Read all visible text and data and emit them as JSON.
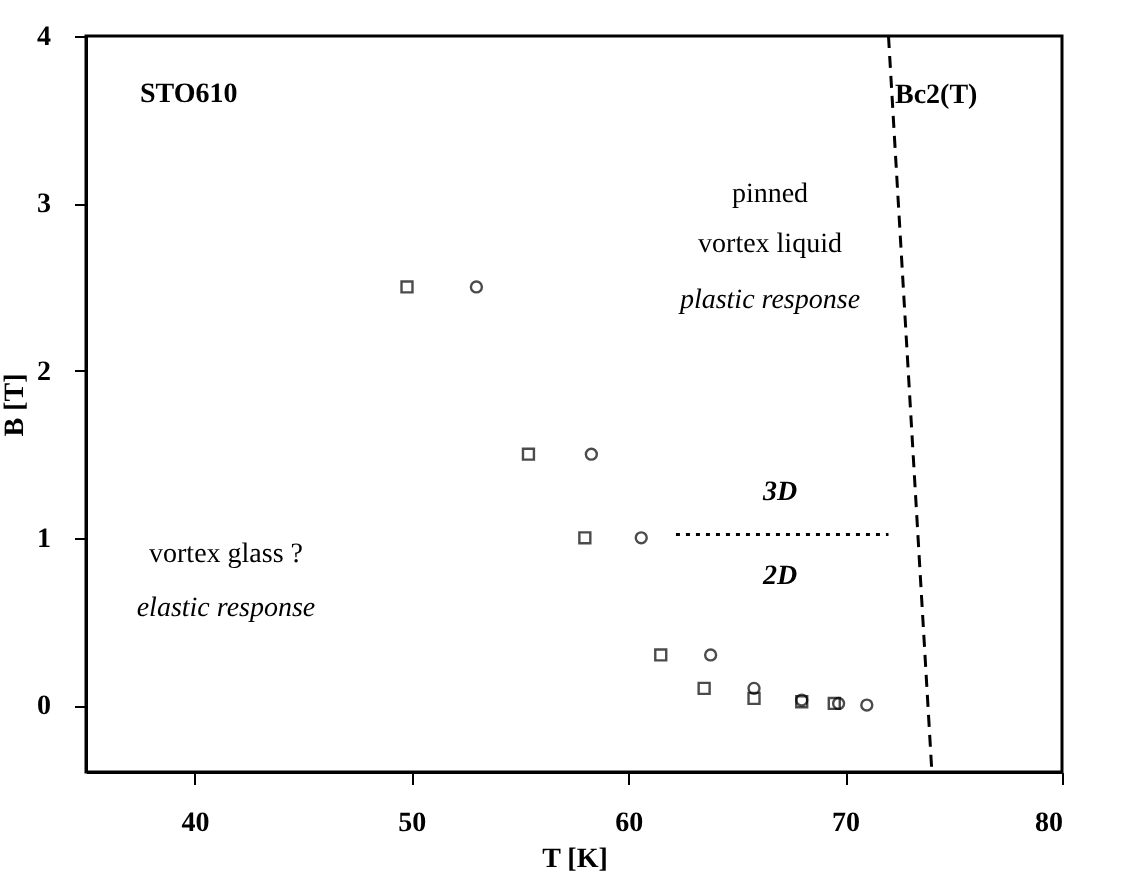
{
  "chart_data": {
    "type": "scatter",
    "xlabel": "T [K]",
    "ylabel": "B [T]",
    "xlim": [
      35,
      80
    ],
    "xticks": [
      40,
      50,
      60,
      70,
      80
    ],
    "ylim": [
      -0.4,
      4
    ],
    "yticks": [
      0,
      1,
      2,
      3,
      4
    ],
    "grid": false,
    "legend": false,
    "series": [
      {
        "marker": "square",
        "color": "#000000",
        "x": [
          49.8,
          55.4,
          58.0,
          61.5,
          63.5,
          65.8,
          68.0,
          69.5
        ],
        "values": [
          2.5,
          1.5,
          1.0,
          0.3,
          0.1,
          0.04,
          0.02,
          0.01
        ]
      },
      {
        "marker": "circle",
        "color": "#000000",
        "x": [
          53.0,
          58.3,
          60.6,
          63.8,
          65.8,
          68.0,
          69.7,
          71.0
        ],
        "values": [
          2.5,
          1.5,
          1.0,
          0.3,
          0.1,
          0.03,
          0.01,
          0.0
        ]
      },
      {
        "type": "line",
        "line_style": "dashed",
        "color": "#000000",
        "x": [
          72.0,
          74.0
        ],
        "values": [
          4.0,
          -0.4
        ]
      },
      {
        "type": "line",
        "line_style": "dotted",
        "color": "#000000",
        "x": [
          62.2,
          72.0
        ],
        "values": [
          1.02,
          1.02
        ]
      }
    ],
    "annotations": [
      "STO610",
      {
        "text": "Bc2(T)",
        "x": 72.3,
        "y": 3.65
      },
      "pinned",
      "vortex liquid",
      "plastic response",
      "3D",
      "2D",
      "vortex glass ?",
      "elastic response"
    ]
  }
}
